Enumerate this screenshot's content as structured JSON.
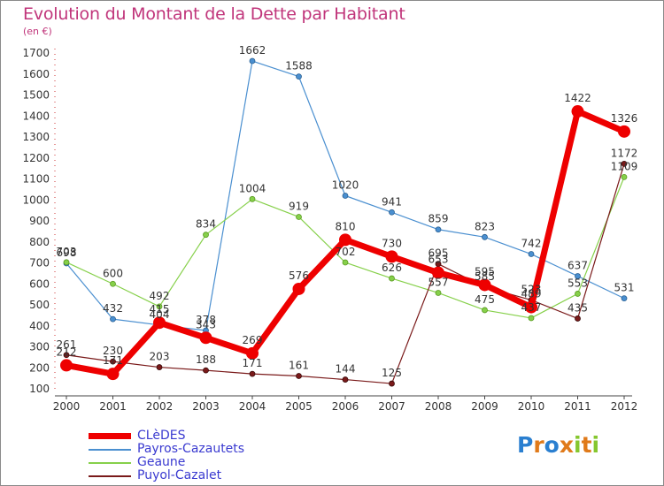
{
  "header": {
    "title": "Evolution du Montant de la Dette par Habitant",
    "unit": "(en €)"
  },
  "logo": {
    "text": "Proxiti",
    "colors": [
      "#2a7fd0",
      "#e07a1a",
      "#2a7fd0",
      "#e07a1a",
      "#86c72f",
      "#e07a1a",
      "#86c72f"
    ]
  },
  "chart_data": {
    "type": "line",
    "title": "Evolution du Montant de la Dette par Habitant",
    "subtitle": "(en €)",
    "xlabel": "",
    "ylabel": "",
    "categories": [
      "2000",
      "2001",
      "2002",
      "2003",
      "2004",
      "2005",
      "2006",
      "2007",
      "2008",
      "2009",
      "2010",
      "2011",
      "2012"
    ],
    "ylim": [
      100,
      1700
    ],
    "yticks": [
      100,
      200,
      300,
      400,
      500,
      600,
      700,
      800,
      900,
      1000,
      1100,
      1200,
      1300,
      1400,
      1500,
      1600,
      1700
    ],
    "grid": false,
    "legend_position": "bottom-left",
    "series": [
      {
        "name": "Payros-Cazautets",
        "color": "#4a8fd0",
        "values": [
          698,
          432,
          404,
          378,
          1662,
          1588,
          1020,
          941,
          859,
          823,
          742,
          637,
          531
        ],
        "labels": [
          "698",
          "432",
          "404",
          "378",
          "1662",
          "1588",
          "1020",
          "941",
          "859",
          "823",
          "742",
          "637",
          "531"
        ]
      },
      {
        "name": "Geaune",
        "color": "#86d04a",
        "values": [
          703,
          600,
          492,
          834,
          1004,
          919,
          702,
          626,
          557,
          475,
          437,
          553,
          1109
        ],
        "labels": [
          "703",
          "600",
          "492",
          "834",
          "1004",
          "919",
          "702",
          "626",
          "557",
          "475",
          "437",
          "553",
          "1109"
        ]
      },
      {
        "name": "Puyol-Cazalet",
        "color": "#7a1a1a",
        "values": [
          261,
          230,
          203,
          188,
          171,
          161,
          144,
          125,
          695,
          585,
          523,
          435,
          1172
        ],
        "labels": [
          "261",
          "230",
          "203",
          "188",
          "171",
          "161",
          "144",
          "125",
          "695",
          "585",
          "523",
          "435",
          "1172"
        ]
      },
      {
        "name": "CLèDES",
        "color": "#ee0000",
        "values": [
          212,
          171,
          415,
          343,
          269,
          576,
          810,
          730,
          653,
          595,
          489,
          1422,
          1326
        ],
        "labels": [
          "212",
          "171",
          "415",
          "343",
          "269",
          "576",
          "810",
          "730",
          "653",
          "595",
          "489",
          "1422",
          "1326"
        ]
      }
    ]
  },
  "legend": {
    "items": [
      {
        "label": "CLèDES",
        "color": "#ee0000"
      },
      {
        "label": "Payros-Cazautets",
        "color": "#4a8fd0"
      },
      {
        "label": "Geaune",
        "color": "#86d04a"
      },
      {
        "label": "Puyol-Cazalet",
        "color": "#7a1a1a"
      }
    ]
  }
}
